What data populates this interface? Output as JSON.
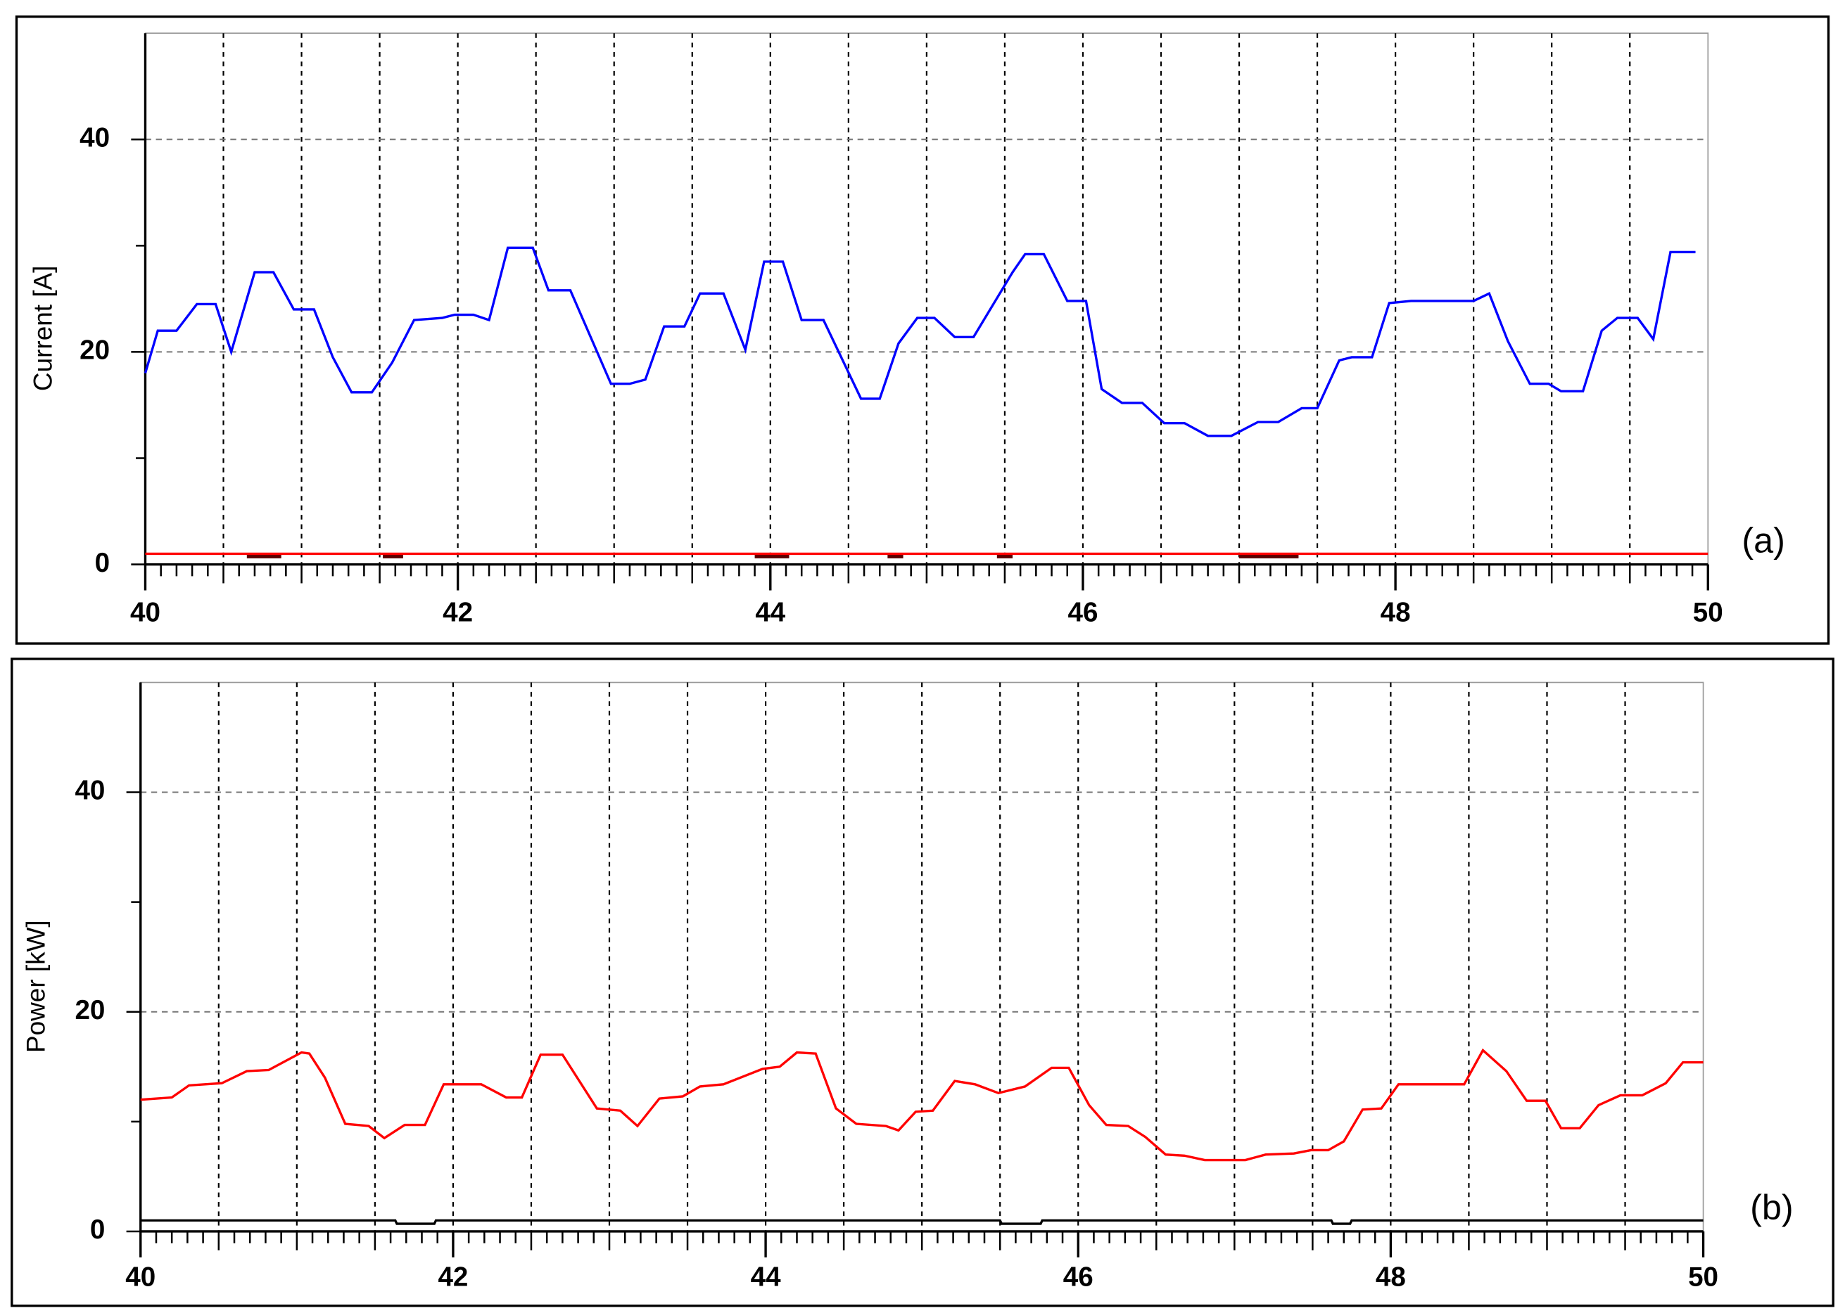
{
  "chart_data": [
    {
      "type": "line",
      "ylabel": "Current [A]",
      "annotation": "(a)",
      "xlim": [
        40,
        50
      ],
      "ylim": [
        0,
        50
      ],
      "xticks": [
        40,
        42,
        44,
        46,
        48,
        50
      ],
      "yticks": [
        0,
        20,
        40
      ],
      "yminor_ticks": [
        10,
        30
      ],
      "xminor_step": 0.1,
      "xgrid_step": 0.5,
      "grid": true,
      "series": [
        {
          "color": "#0000ff",
          "x": [
            40,
            40.08,
            40.2,
            40.33,
            40.45,
            40.55,
            40.7,
            40.82,
            40.95,
            41.08,
            41.2,
            41.32,
            41.45,
            41.58,
            41.72,
            41.9,
            41.98,
            42.1,
            42.2,
            42.32,
            42.48,
            42.58,
            42.72,
            42.98,
            43.1,
            43.2,
            43.32,
            43.45,
            43.55,
            43.7,
            43.84,
            43.96,
            44.08,
            44.2,
            44.34,
            44.58,
            44.7,
            44.82,
            44.94,
            45.05,
            45.18,
            45.3,
            45.55,
            45.63,
            45.75,
            45.9,
            46.02,
            46.12,
            46.25,
            46.38,
            46.52,
            46.65,
            46.8,
            46.95,
            47.12,
            47.25,
            47.4,
            47.5,
            47.64,
            47.72,
            47.85,
            47.96,
            48.1,
            48.5,
            48.6,
            48.72,
            48.86,
            48.98,
            49.06,
            49.2,
            49.32,
            49.42,
            49.55,
            49.65,
            49.76,
            49.92
          ],
          "values": [
            18,
            22,
            22,
            24.5,
            24.5,
            20,
            27.5,
            27.5,
            24,
            24,
            19.5,
            16.2,
            16.2,
            19,
            23,
            23.2,
            23.5,
            23.5,
            23,
            29.8,
            29.8,
            25.8,
            25.8,
            17,
            17,
            17.4,
            22.4,
            22.4,
            25.5,
            25.5,
            20.2,
            28.5,
            28.5,
            23,
            23,
            15.6,
            15.6,
            20.8,
            23.2,
            23.2,
            21.4,
            21.4,
            27.5,
            29.2,
            29.2,
            24.8,
            24.8,
            16.5,
            15.2,
            15.2,
            13.3,
            13.3,
            12.1,
            12.1,
            13.4,
            13.4,
            14.7,
            14.7,
            19.2,
            19.5,
            19.5,
            24.6,
            24.8,
            24.8,
            25.5,
            21,
            17,
            17,
            16.3,
            16.3,
            22,
            23.2,
            23.2,
            21.2,
            29.4,
            29.4
          ]
        },
        {
          "color": "#5a0000",
          "x": [
            40.65,
            40.87,
            null,
            41.52,
            41.65,
            null,
            43.9,
            44.12,
            null,
            44.75,
            44.85,
            null,
            45.45,
            45.55,
            null,
            47.0,
            47.38
          ],
          "values": [
            0.8,
            0.8,
            null,
            0.8,
            0.8,
            null,
            0.8,
            0.8,
            null,
            0.8,
            0.8,
            null,
            0.8,
            0.8,
            null,
            0.8,
            0.8
          ]
        },
        {
          "color": "#ff0000",
          "x": [
            40,
            50
          ],
          "values": [
            1,
            1
          ]
        }
      ]
    },
    {
      "type": "line",
      "ylabel": "Power [kW]",
      "annotation": "(b)",
      "xlim": [
        40,
        50
      ],
      "ylim": [
        0,
        50
      ],
      "xticks": [
        40,
        42,
        44,
        46,
        48,
        50
      ],
      "yticks": [
        0,
        20,
        40
      ],
      "yminor_ticks": [
        10,
        30
      ],
      "xminor_step": 0.1,
      "xgrid_step": 0.5,
      "grid": true,
      "series": [
        {
          "color": "#ff0000",
          "x": [
            40,
            40.2,
            40.31,
            40.52,
            40.68,
            40.82,
            41.03,
            41.08,
            41.18,
            41.31,
            41.46,
            41.56,
            41.69,
            41.82,
            41.94,
            42.18,
            42.34,
            42.44,
            42.56,
            42.7,
            42.92,
            43.07,
            43.18,
            43.32,
            43.47,
            43.58,
            43.73,
            43.98,
            44.09,
            44.2,
            44.32,
            44.45,
            44.58,
            44.77,
            44.85,
            44.96,
            45.07,
            45.21,
            45.34,
            45.49,
            45.66,
            45.83,
            45.94,
            46.07,
            46.18,
            46.32,
            46.43,
            46.56,
            46.68,
            46.81,
            47.07,
            47.2,
            47.38,
            47.49,
            47.6,
            47.7,
            47.82,
            47.94,
            48.05,
            48.47,
            48.59,
            48.74,
            48.87,
            48.99,
            49.09,
            49.21,
            49.33,
            49.47,
            49.61,
            49.76,
            49.87,
            50
          ],
          "values": [
            12,
            12.2,
            13.3,
            13.5,
            14.6,
            14.7,
            16.3,
            16.2,
            14,
            9.8,
            9.6,
            8.5,
            9.7,
            9.7,
            13.4,
            13.4,
            12.2,
            12.2,
            16.1,
            16.1,
            11.2,
            11,
            9.6,
            12.1,
            12.3,
            13.2,
            13.4,
            14.8,
            15,
            16.3,
            16.2,
            11.2,
            9.8,
            9.6,
            9.2,
            10.9,
            11,
            13.7,
            13.4,
            12.6,
            13.2,
            14.9,
            14.9,
            11.5,
            9.7,
            9.6,
            8.6,
            7,
            6.9,
            6.5,
            6.5,
            7,
            7.1,
            7.4,
            7.4,
            8.2,
            11.1,
            11.2,
            13.4,
            13.4,
            16.5,
            14.6,
            11.9,
            11.9,
            9.4,
            9.4,
            11.5,
            12.4,
            12.4,
            13.5,
            15.4,
            15.4
          ]
        },
        {
          "color": "#000000",
          "x": [
            40,
            41.63,
            41.64,
            41.88,
            41.89,
            45.5,
            45.51,
            45.76,
            45.77,
            47.62,
            47.63,
            47.74,
            47.75,
            50
          ],
          "values": [
            1,
            1,
            0.7,
            0.7,
            1,
            1,
            0.7,
            0.7,
            1,
            1,
            0.7,
            0.7,
            1,
            1
          ]
        }
      ]
    }
  ]
}
